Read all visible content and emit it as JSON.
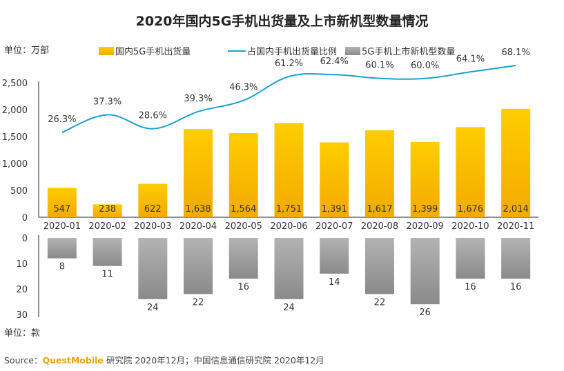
{
  "title": "2020年国内5G手机出货量及上市新机型数量情况",
  "unit_top": "单位：万部",
  "unit_bottom": "单位：款",
  "legend": {
    "shipments": "国内5G手机出货量",
    "ratio": "占国内手机出货量比例",
    "models": "5G手机上市新机型数量"
  },
  "source": {
    "prefix": "Source：",
    "brand": "QuestMobile",
    "rest": " 研究院 2020年12月；中国信息通信研究院 2020年12月"
  },
  "colors": {
    "bar_top": "#ffcd00",
    "bar_bottom": "#f3a900",
    "line": "#1aa0d2",
    "grey_top": "#b3b3b3",
    "grey_bottom": "#8a8a8a"
  },
  "chart_data": {
    "type": "bar+line",
    "categories": [
      "2020-01",
      "2020-02",
      "2020-03",
      "2020-04",
      "2020-05",
      "2020-06",
      "2020-07",
      "2020-08",
      "2020-09",
      "2020-10",
      "2020-11"
    ],
    "series": [
      {
        "name": "国内5G手机出货量",
        "type": "bar",
        "axis": "top",
        "values": [
          547,
          238,
          622,
          1638,
          1564,
          1751,
          1391,
          1617,
          1399,
          1676,
          2014
        ],
        "labels": [
          "547",
          "238",
          "622",
          "1,638",
          "1,564",
          "1,751",
          "1,391",
          "1,617",
          "1,399",
          "1,676",
          "2,014"
        ]
      },
      {
        "name": "占国内手机出货量比例",
        "type": "line",
        "values": [
          26.3,
          37.3,
          28.6,
          39.3,
          46.3,
          61.2,
          62.4,
          60.1,
          60.0,
          64.1,
          68.1
        ],
        "labels": [
          "26.3%",
          "37.3%",
          "28.6%",
          "39.3%",
          "46.3%",
          "61.2%",
          "62.4%",
          "60.1%",
          "60.0%",
          "64.1%",
          "68.1%"
        ]
      },
      {
        "name": "5G手机上市新机型数量",
        "type": "bar",
        "axis": "bottom",
        "values": [
          8,
          11,
          24,
          22,
          16,
          24,
          14,
          22,
          26,
          16,
          16
        ],
        "labels": [
          "8",
          "11",
          "24",
          "22",
          "16",
          "24",
          "14",
          "22",
          "26",
          "16",
          "16"
        ]
      }
    ],
    "y_top": {
      "ylim": [
        0,
        2500
      ],
      "ticks": [
        0,
        500,
        1000,
        1500,
        2000,
        2500
      ],
      "tick_labels": [
        "0",
        "500",
        "1,000",
        "1,500",
        "2,000",
        "2,500"
      ]
    },
    "y_bottom": {
      "ylim": [
        0,
        30
      ],
      "ticks": [
        0,
        10,
        20,
        30
      ],
      "tick_labels": [
        "0",
        "10",
        "20",
        "30"
      ]
    }
  }
}
